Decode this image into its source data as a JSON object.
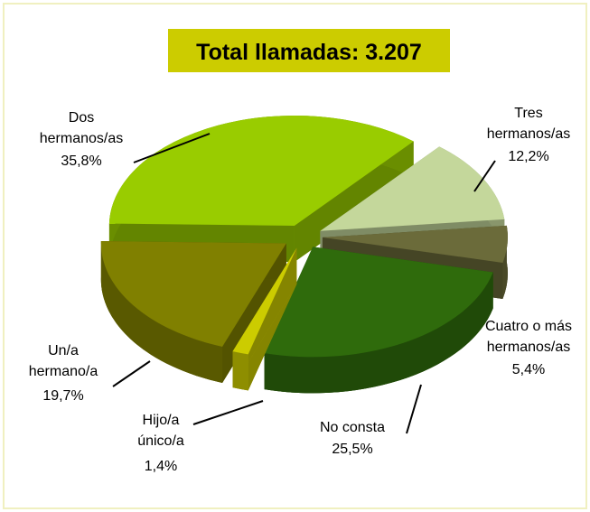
{
  "chart_data": {
    "type": "pie",
    "title": "Total llamadas: 3.207",
    "categories": [
      "Tres\nhermanos/as",
      "Cuatro o más\nhermanos/as",
      "No consta",
      "Hijo/a\núnico/a",
      "Un/a\nhermano/a",
      "Dos\nhermanos/as"
    ],
    "values": [
      12.2,
      5.4,
      25.5,
      1.4,
      19.7,
      35.8
    ],
    "value_labels": [
      "12,2%",
      "5,4%",
      "25,5%",
      "1,4%",
      "19,7%",
      "35,8%"
    ],
    "colors": [
      "#c4d79b",
      "#6b6b3a",
      "#2f6b0c",
      "#cccc00",
      "#808000",
      "#99cc00"
    ]
  }
}
